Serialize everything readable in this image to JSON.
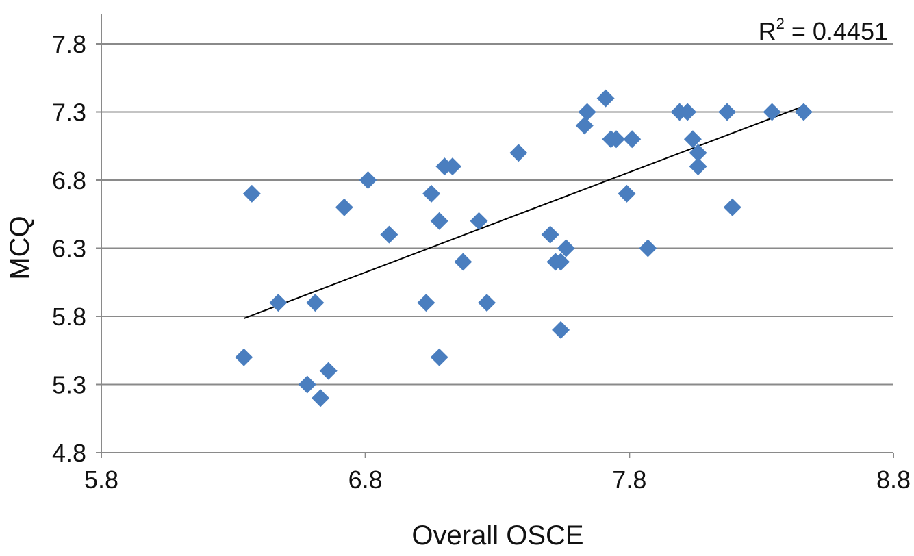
{
  "chart_data": {
    "type": "scatter",
    "title": "",
    "xlabel": "Overall OSCE",
    "ylabel": "MCQ",
    "xlim": [
      5.8,
      8.8
    ],
    "ylim": [
      4.8,
      7.8
    ],
    "x_ticks": [
      "5.8",
      "6.8",
      "7.8",
      "8.8"
    ],
    "y_ticks": [
      "4.8",
      "5.3",
      "5.8",
      "6.3",
      "6.8",
      "7.3",
      "7.8"
    ],
    "grid": "horizontal",
    "marker": "diamond",
    "marker_color": "#4a7ebf",
    "annotation": {
      "prefix": "R",
      "sup": "2",
      "text": " = 0.4451"
    },
    "trendline": {
      "type": "linear",
      "x_range": [
        6.34,
        8.46
      ],
      "slope": 0.735,
      "intercept": 1.125,
      "color": "#000000"
    },
    "points": [
      [
        6.37,
        6.7
      ],
      [
        6.34,
        5.5
      ],
      [
        6.47,
        5.9
      ],
      [
        6.58,
        5.3
      ],
      [
        6.61,
        5.9
      ],
      [
        6.63,
        5.2
      ],
      [
        6.66,
        5.4
      ],
      [
        6.72,
        6.6
      ],
      [
        6.81,
        6.8
      ],
      [
        6.89,
        6.4
      ],
      [
        7.03,
        5.9
      ],
      [
        7.05,
        6.7
      ],
      [
        7.08,
        6.5
      ],
      [
        7.08,
        5.5
      ],
      [
        7.1,
        6.9
      ],
      [
        7.13,
        6.9
      ],
      [
        7.17,
        6.2
      ],
      [
        7.23,
        6.5
      ],
      [
        7.26,
        5.9
      ],
      [
        7.38,
        7.0
      ],
      [
        7.5,
        6.4
      ],
      [
        7.52,
        6.2
      ],
      [
        7.54,
        6.2
      ],
      [
        7.54,
        5.7
      ],
      [
        7.56,
        6.3
      ],
      [
        7.63,
        7.2
      ],
      [
        7.64,
        7.3
      ],
      [
        7.71,
        7.4
      ],
      [
        7.73,
        7.1
      ],
      [
        7.75,
        7.1
      ],
      [
        7.79,
        6.7
      ],
      [
        7.81,
        7.1
      ],
      [
        7.87,
        6.3
      ],
      [
        7.99,
        7.3
      ],
      [
        8.02,
        7.3
      ],
      [
        8.04,
        7.1
      ],
      [
        8.06,
        7.0
      ],
      [
        8.06,
        6.9
      ],
      [
        8.17,
        7.3
      ],
      [
        8.19,
        6.6
      ],
      [
        8.34,
        7.3
      ],
      [
        8.46,
        7.3
      ]
    ]
  }
}
